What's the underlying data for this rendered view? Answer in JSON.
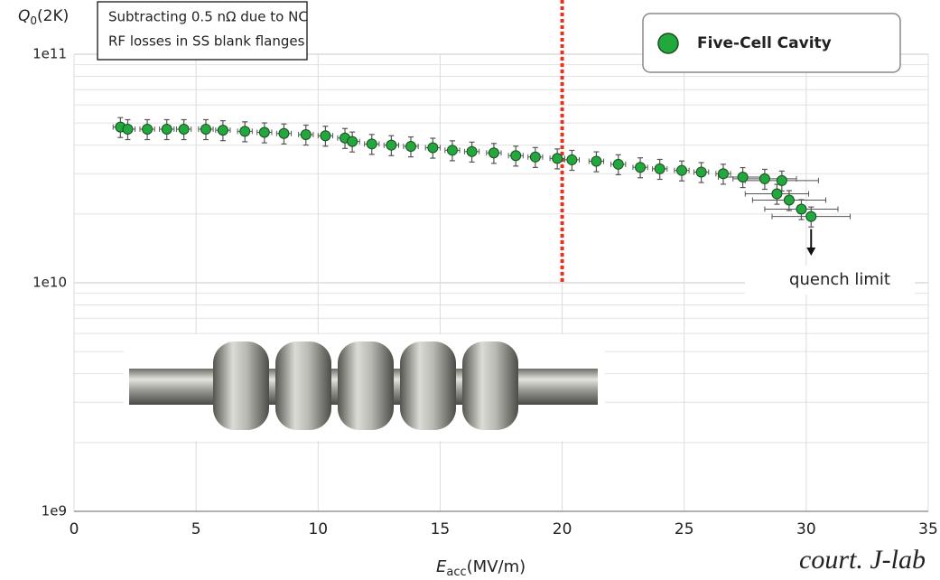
{
  "chart_data": {
    "type": "scatter",
    "x_label": {
      "symbol": "E",
      "subscript": "acc",
      "unit": "(MV/m)"
    },
    "y_label": {
      "symbol": "Q",
      "subscript": "0",
      "unit": "(2K)"
    },
    "note": [
      "Subtracting 0.5 nΩ due to NC",
      "RF losses in SS blank flanges"
    ],
    "annotation": "quench limit",
    "credit": "court. J-lab",
    "log_y": true,
    "grid": true,
    "legend": "top-right",
    "vline": {
      "x": 20,
      "color": "#e8321e"
    },
    "xlim": [
      0,
      35
    ],
    "xticks": [
      0,
      5,
      10,
      15,
      20,
      25,
      30,
      35
    ],
    "ylim": [
      1000000000,
      100000000000
    ],
    "yticks": [
      {
        "value": 1000000000,
        "label": "1e9"
      },
      {
        "value": 10000000000,
        "label": "1e10"
      },
      {
        "value": 100000000000,
        "label": "1e11"
      }
    ],
    "series": [
      {
        "name": "Five-Cell Cavity",
        "color": "#22a83c",
        "x": [
          1.9,
          2.2,
          3.0,
          3.8,
          4.5,
          5.4,
          6.1,
          7.0,
          7.8,
          8.6,
          9.5,
          10.3,
          11.1,
          11.4,
          12.2,
          13.0,
          13.8,
          14.7,
          15.5,
          16.3,
          17.2,
          18.1,
          18.9,
          19.8,
          20.4,
          21.4,
          22.3,
          23.2,
          24.0,
          24.9,
          25.7,
          26.6,
          27.4,
          28.3,
          29.0,
          28.8,
          29.3,
          29.8,
          30.2
        ],
        "values": [
          48000000000,
          47000000000,
          47000000000,
          47000000000,
          47000000000,
          47000000000,
          46500000000,
          46000000000,
          45500000000,
          45000000000,
          44500000000,
          44000000000,
          43000000000,
          41500000000,
          40500000000,
          40000000000,
          39500000000,
          39000000000,
          38000000000,
          37500000000,
          37000000000,
          36000000000,
          35500000000,
          35000000000,
          34500000000,
          34000000000,
          33000000000,
          32000000000,
          31500000000,
          31000000000,
          30500000000,
          30000000000,
          29000000000,
          28500000000,
          28000000000,
          24500000000,
          23000000000,
          21000000000,
          19500000000
        ],
        "y_err": [
          4800000000,
          4700000000,
          4700000000,
          4700000000,
          4700000000,
          4700000000,
          4650000000,
          4600000000,
          4550000000,
          4500000000,
          4450000000,
          4400000000,
          4300000000,
          4150000000,
          4050000000,
          4000000000,
          3950000000,
          3900000000,
          3800000000,
          3750000000,
          3700000000,
          3600000000,
          3550000000,
          3500000000,
          3450000000,
          3400000000,
          3300000000,
          3200000000,
          3150000000,
          3100000000,
          3050000000,
          3000000000,
          2900000000,
          2850000000,
          2800000000,
          2450000000,
          2300000000,
          2100000000,
          1950000000
        ],
        "x_err": [
          0.3,
          0.3,
          0.3,
          0.3,
          0.3,
          0.3,
          0.3,
          0.3,
          0.3,
          0.3,
          0.3,
          0.3,
          0.3,
          0.3,
          0.3,
          0.3,
          0.3,
          0.3,
          0.3,
          0.3,
          0.3,
          0.3,
          0.3,
          0.3,
          0.3,
          0.3,
          0.3,
          0.3,
          0.3,
          0.3,
          0.3,
          0.3,
          1.0,
          1.3,
          1.5,
          1.3,
          1.5,
          1.5,
          1.6
        ]
      }
    ]
  }
}
